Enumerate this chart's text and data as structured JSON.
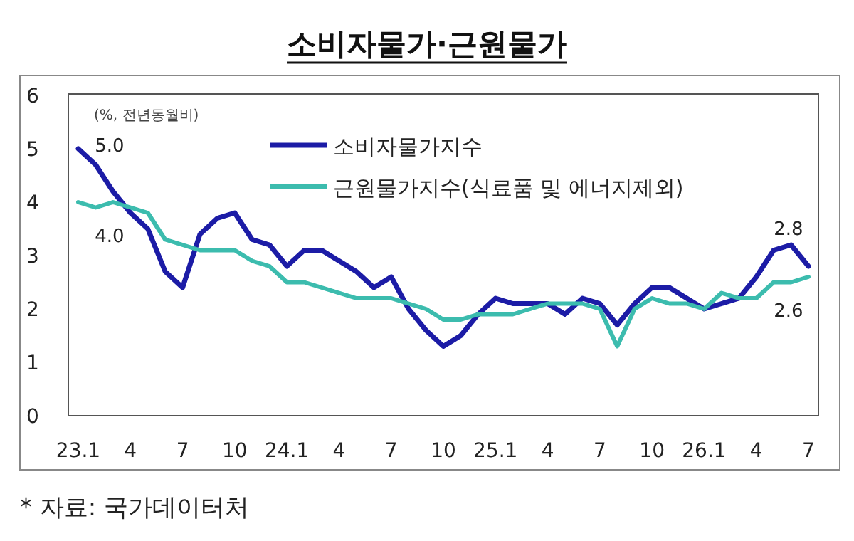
{
  "chart_data": {
    "type": "line",
    "title": "소비자물가·근원물가",
    "ylabel": "(%, 전년동월비)",
    "categories": [
      "23.1",
      null,
      null,
      "4",
      null,
      null,
      "7",
      null,
      null,
      "10",
      null,
      null,
      "24.1",
      null,
      null,
      "4",
      null,
      null,
      "7",
      null,
      null,
      "10",
      null,
      null,
      "25.1",
      null,
      null,
      "4",
      null,
      null,
      "7",
      null,
      null,
      "10",
      null,
      null,
      "26.1",
      null,
      null,
      "4",
      null,
      null,
      "7"
    ],
    "series": [
      {
        "name": "소비자물가지수",
        "color": "#1c1ca6",
        "values": [
          5.0,
          4.7,
          4.2,
          3.8,
          3.5,
          2.7,
          2.4,
          3.4,
          3.7,
          3.8,
          3.3,
          3.2,
          2.8,
          3.1,
          3.1,
          2.9,
          2.7,
          2.4,
          2.6,
          2.0,
          1.6,
          1.3,
          1.5,
          1.9,
          2.2,
          2.1,
          2.1,
          2.1,
          1.9,
          2.2,
          2.1,
          1.7,
          2.1,
          2.4,
          2.4,
          2.2,
          2.0,
          2.1,
          2.2,
          2.6,
          3.1,
          3.2,
          2.8
        ],
        "value_labels": [
          "5.0",
          null,
          null,
          null,
          null,
          null,
          null,
          null,
          null,
          null,
          null,
          null,
          null,
          null,
          null,
          null,
          null,
          null,
          null,
          null,
          null,
          null,
          null,
          null,
          null,
          null,
          null,
          null,
          null,
          null,
          null,
          null,
          null,
          null,
          null,
          null,
          null,
          null,
          null,
          null,
          null,
          null,
          "2.8"
        ]
      },
      {
        "name": "근원물가지수(식료품 및 에너지제외)",
        "color": "#3cbcae",
        "values": [
          4.0,
          3.9,
          4.0,
          3.9,
          3.8,
          3.3,
          3.2,
          3.1,
          3.1,
          3.1,
          2.9,
          2.8,
          2.5,
          2.5,
          2.4,
          2.3,
          2.2,
          2.2,
          2.2,
          2.1,
          2.0,
          1.8,
          1.8,
          1.9,
          1.9,
          1.9,
          2.0,
          2.1,
          2.1,
          2.1,
          2.0,
          1.3,
          2.0,
          2.2,
          2.1,
          2.1,
          2.0,
          2.3,
          2.2,
          2.2,
          2.5,
          2.5,
          2.6
        ],
        "value_labels": [
          "4.0",
          null,
          null,
          null,
          null,
          null,
          null,
          null,
          null,
          null,
          null,
          null,
          null,
          null,
          null,
          null,
          null,
          null,
          null,
          null,
          null,
          null,
          null,
          null,
          null,
          null,
          null,
          null,
          null,
          null,
          null,
          null,
          null,
          null,
          null,
          null,
          null,
          null,
          null,
          null,
          null,
          null,
          "2.6"
        ]
      }
    ],
    "ylim": [
      0,
      6
    ],
    "yticks": [
      0,
      1,
      2,
      3,
      4,
      5,
      6
    ],
    "grid": false,
    "legend": "top",
    "line_style": "solid",
    "annotations": [
      "* 자료: 국가데이터처"
    ]
  }
}
